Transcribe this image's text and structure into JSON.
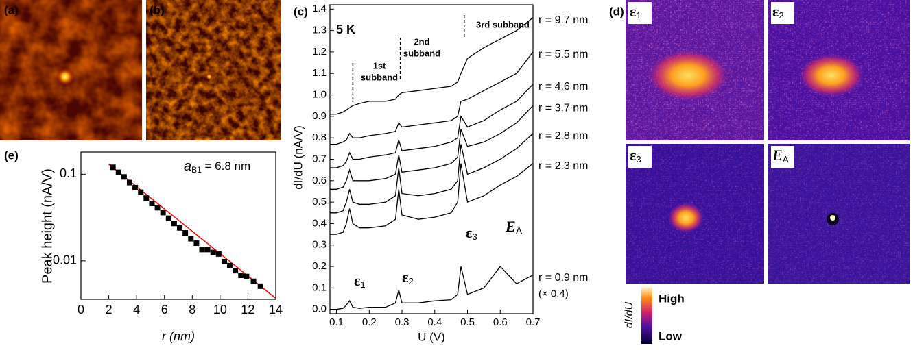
{
  "panel_labels": [
    "(a)",
    "(b)",
    "(c)",
    "(d)",
    "(e)"
  ],
  "maps": [
    {
      "symbol": "ε",
      "subscript": "1"
    },
    {
      "symbol": "ε",
      "subscript": "2"
    },
    {
      "symbol": "ε",
      "subscript": "3"
    },
    {
      "symbol": "E",
      "subscript": "A"
    }
  ],
  "colorbar": {
    "title": "dI/dU",
    "high": "High",
    "low": "Low"
  },
  "chart_data": [
    {
      "type": "line",
      "x_label": "U (V)",
      "y_label": "dI/dU (nA/V)",
      "temperature": "5 K",
      "x": [
        0.08,
        0.1,
        0.12,
        0.13,
        0.14,
        0.15,
        0.17,
        0.2,
        0.25,
        0.28,
        0.29,
        0.3,
        0.35,
        0.4,
        0.45,
        0.47,
        0.48,
        0.5,
        0.55,
        0.6,
        0.65,
        0.7
      ],
      "series": [
        {
          "name": "r = 9.7 nm",
          "color": "#000000",
          "values": [
            0.91,
            0.91,
            0.92,
            0.93,
            0.94,
            0.95,
            0.96,
            0.97,
            0.97,
            0.98,
            1.0,
            1.01,
            1.02,
            1.03,
            1.04,
            1.06,
            1.1,
            1.17,
            1.22,
            1.26,
            1.3,
            1.36
          ]
        },
        {
          "name": "r = 5.5 nm",
          "color": "#000000",
          "values": [
            0.77,
            0.77,
            0.78,
            0.79,
            0.82,
            0.8,
            0.8,
            0.81,
            0.82,
            0.83,
            0.87,
            0.85,
            0.86,
            0.87,
            0.88,
            0.9,
            0.97,
            0.98,
            1.02,
            1.06,
            1.1,
            1.2
          ]
        },
        {
          "name": "r = 4.6 nm",
          "color": "#000000",
          "values": [
            0.66,
            0.66,
            0.67,
            0.69,
            0.73,
            0.7,
            0.7,
            0.71,
            0.72,
            0.73,
            0.79,
            0.74,
            0.75,
            0.76,
            0.78,
            0.8,
            0.9,
            0.85,
            0.88,
            0.93,
            0.97,
            1.05
          ]
        },
        {
          "name": "r = 3.7 nm",
          "color": "#000000",
          "values": [
            0.56,
            0.56,
            0.57,
            0.6,
            0.65,
            0.6,
            0.6,
            0.6,
            0.61,
            0.63,
            0.72,
            0.64,
            0.65,
            0.66,
            0.68,
            0.71,
            0.84,
            0.76,
            0.78,
            0.82,
            0.87,
            0.95
          ]
        },
        {
          "name": "r = 2.8 nm",
          "color": "#000000",
          "values": [
            0.45,
            0.45,
            0.46,
            0.5,
            0.56,
            0.5,
            0.49,
            0.49,
            0.5,
            0.53,
            0.66,
            0.54,
            0.53,
            0.54,
            0.56,
            0.6,
            0.77,
            0.63,
            0.66,
            0.7,
            0.75,
            0.82
          ]
        },
        {
          "name": "r = 2.3 nm",
          "color": "#000000",
          "values": [
            0.35,
            0.35,
            0.36,
            0.4,
            0.47,
            0.4,
            0.38,
            0.38,
            0.39,
            0.42,
            0.56,
            0.44,
            0.42,
            0.43,
            0.45,
            0.5,
            0.68,
            0.5,
            0.53,
            0.58,
            0.62,
            0.68
          ]
        },
        {
          "name": "r = 0.9 nm",
          "color": "#000000",
          "values": [
            0.0,
            0.0,
            0.005,
            0.02,
            0.04,
            0.01,
            0.005,
            0.01,
            0.01,
            0.03,
            0.09,
            0.03,
            0.03,
            0.04,
            0.045,
            0.07,
            0.2,
            0.07,
            0.1,
            0.2,
            0.12,
            0.16
          ]
        }
      ],
      "scale_note": "(× 0.4)",
      "subband_edges": [
        0.15,
        0.295,
        0.49
      ],
      "subband_labels": [
        [
          "1st",
          "subband"
        ],
        [
          "2nd",
          "subband"
        ],
        [
          "3rd subband"
        ]
      ],
      "peak_labels": [
        {
          "symbol": "ε",
          "subscript": "1"
        },
        {
          "symbol": "ε",
          "subscript": "2"
        },
        {
          "symbol": "ε",
          "subscript": "3"
        },
        {
          "symbol": "E",
          "subscript": "A"
        }
      ],
      "xlim": [
        0.08,
        0.7
      ],
      "xticks": [
        0.1,
        0.2,
        0.3,
        0.4,
        0.5,
        0.6,
        0.7
      ],
      "ylim": [
        -0.02,
        1.42
      ],
      "yticks": [
        {
          "value": 0,
          "label": "0.0"
        },
        0.1,
        0.2,
        0.3,
        0.4,
        0.5,
        0.6,
        0.7,
        0.8,
        0.9,
        {
          "value": 1,
          "label": "1.0"
        },
        1.1,
        1.2,
        1.3,
        1.4
      ]
    },
    {
      "type": "scatter",
      "x_label": "r (nm)",
      "y_label": "Peak height (nA/V)",
      "annotation": {
        "symbol": "a",
        "subscript": "B1",
        "text": " = 6.8 nm"
      },
      "x": [
        2.3,
        2.7,
        3.1,
        3.5,
        3.9,
        4.3,
        4.7,
        5.1,
        5.5,
        5.9,
        6.3,
        6.7,
        7.1,
        7.5,
        7.9,
        8.3,
        8.7,
        9.1,
        9.5,
        9.9,
        10.3,
        10.7,
        11.1,
        11.5,
        11.9,
        12.4,
        12.9
      ],
      "values": [
        0.12,
        0.105,
        0.093,
        0.08,
        0.07,
        0.062,
        0.053,
        0.046,
        0.041,
        0.036,
        0.031,
        0.027,
        0.024,
        0.021,
        0.018,
        0.016,
        0.0135,
        0.0135,
        0.0125,
        0.012,
        0.0098,
        0.0088,
        0.0077,
        0.0068,
        0.0066,
        0.0058,
        0.0051
      ],
      "color": "#000000",
      "fit": {
        "x": [
          2,
          14
        ],
        "values": [
          0.13,
          0.0037
        ],
        "color": "#ff0000"
      },
      "yscale": "log",
      "xlim": [
        0,
        14
      ],
      "xticks": [
        0,
        2,
        4,
        6,
        8,
        10,
        12,
        14
      ],
      "ylim": [
        0.0036,
        0.18
      ],
      "yticks": [
        0.01,
        0.1
      ]
    }
  ]
}
